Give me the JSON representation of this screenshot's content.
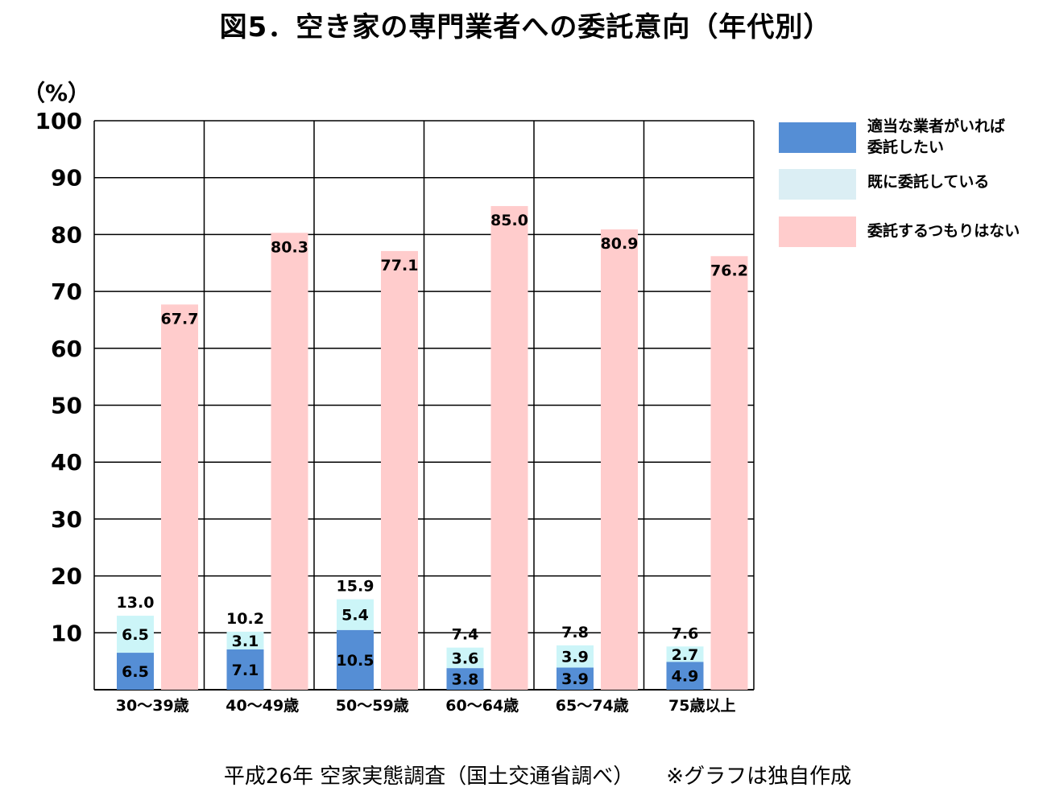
{
  "chart_data": {
    "type": "bar",
    "title": "図5．空き家の専門業者への委託意向（年代別）",
    "ylabel": "（%）",
    "ylim": [
      0,
      100
    ],
    "yticks": [
      10,
      20,
      30,
      40,
      50,
      60,
      70,
      80,
      90,
      100
    ],
    "grid": true,
    "legend_position": "right",
    "categories": [
      "30～39歳",
      "40～49歳",
      "50～59歳",
      "60～64歳",
      "65～74歳",
      "75歳以上"
    ],
    "series": [
      {
        "name": "適当な業者がいれば\n委託したい",
        "color": "#558ed5",
        "stack": "a",
        "values": [
          6.5,
          7.1,
          10.5,
          3.8,
          3.9,
          4.9
        ]
      },
      {
        "name": "既に委託している",
        "color": "#ccf5f8",
        "stack": "a",
        "values": [
          6.5,
          3.1,
          5.4,
          3.6,
          3.9,
          2.7
        ]
      },
      {
        "name": "委託するつもりはない",
        "color": "#ffcccc",
        "stack": "b",
        "values": [
          67.7,
          80.3,
          77.1,
          85.0,
          80.9,
          76.2
        ]
      }
    ],
    "stack_totals": [
      13.0,
      10.2,
      15.9,
      7.4,
      7.8,
      7.6
    ],
    "legend_colors": [
      "#558ed5",
      "#dbeef4",
      "#ffcccc"
    ]
  },
  "source_note": "平成26年 空家実態調査（国土交通省調べ）",
  "source_note2": "※グラフは独自作成"
}
